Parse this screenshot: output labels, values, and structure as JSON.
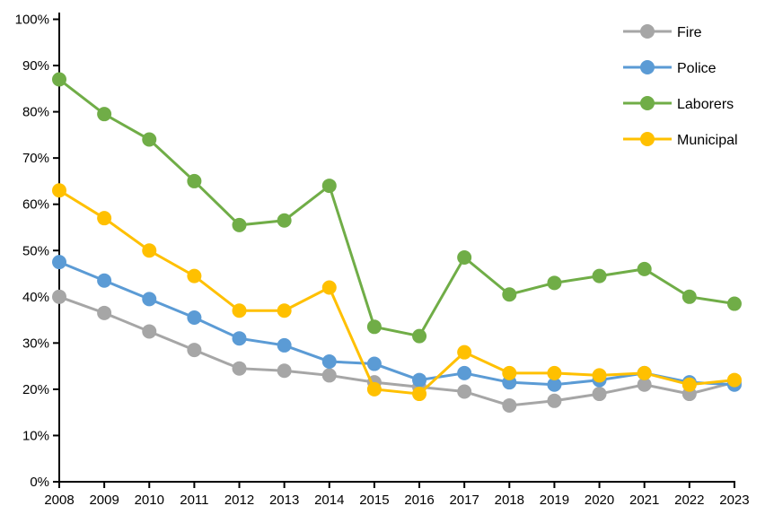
{
  "chart_data": {
    "type": "line",
    "title": "",
    "xlabel": "",
    "ylabel": "",
    "grid": false,
    "legend_position": "top-right",
    "ylim": [
      0,
      100
    ],
    "ytick_step": 10,
    "ytick_format": "percent",
    "x": [
      2008,
      2009,
      2010,
      2011,
      2012,
      2013,
      2014,
      2015,
      2016,
      2017,
      2018,
      2019,
      2020,
      2021,
      2022,
      2023
    ],
    "series": [
      {
        "name": "Fire",
        "color": "#a6a6a6",
        "values": [
          40,
          36.5,
          32.5,
          28.5,
          24.5,
          24,
          23,
          21.5,
          20.5,
          19.5,
          16.5,
          17.5,
          19,
          21,
          19,
          21.5
        ]
      },
      {
        "name": "Police",
        "color": "#5b9bd5",
        "values": [
          47.5,
          43.5,
          39.5,
          35.5,
          31,
          29.5,
          26,
          25.5,
          22,
          23.5,
          21.5,
          21,
          22,
          23.5,
          21.5,
          21
        ]
      },
      {
        "name": "Laborers",
        "color": "#70ad47",
        "values": [
          87,
          79.5,
          74,
          65,
          55.5,
          56.5,
          64,
          33.5,
          31.5,
          48.5,
          40.5,
          43,
          44.5,
          46,
          40,
          38.5
        ]
      },
      {
        "name": "Municipal",
        "color": "#ffc000",
        "values": [
          63,
          57,
          50,
          44.5,
          37,
          37,
          42,
          20,
          19,
          28,
          23.5,
          23.5,
          23,
          23.5,
          21,
          22
        ]
      }
    ]
  },
  "axes": {
    "y_tick_labels": [
      "0%",
      "10%",
      "20%",
      "30%",
      "40%",
      "50%",
      "60%",
      "70%",
      "80%",
      "90%",
      "100%"
    ],
    "x_tick_labels": [
      "2008",
      "2009",
      "2010",
      "2011",
      "2012",
      "2013",
      "2014",
      "2015",
      "2016",
      "2017",
      "2018",
      "2019",
      "2020",
      "2021",
      "2022",
      "2023"
    ]
  },
  "legend": {
    "items": [
      {
        "label": "Fire",
        "color": "#a6a6a6"
      },
      {
        "label": "Police",
        "color": "#5b9bd5"
      },
      {
        "label": "Laborers",
        "color": "#70ad47"
      },
      {
        "label": "Municipal",
        "color": "#ffc000"
      }
    ]
  },
  "colors": {
    "axis": "#000000",
    "text": "#000000",
    "background": "#ffffff"
  }
}
